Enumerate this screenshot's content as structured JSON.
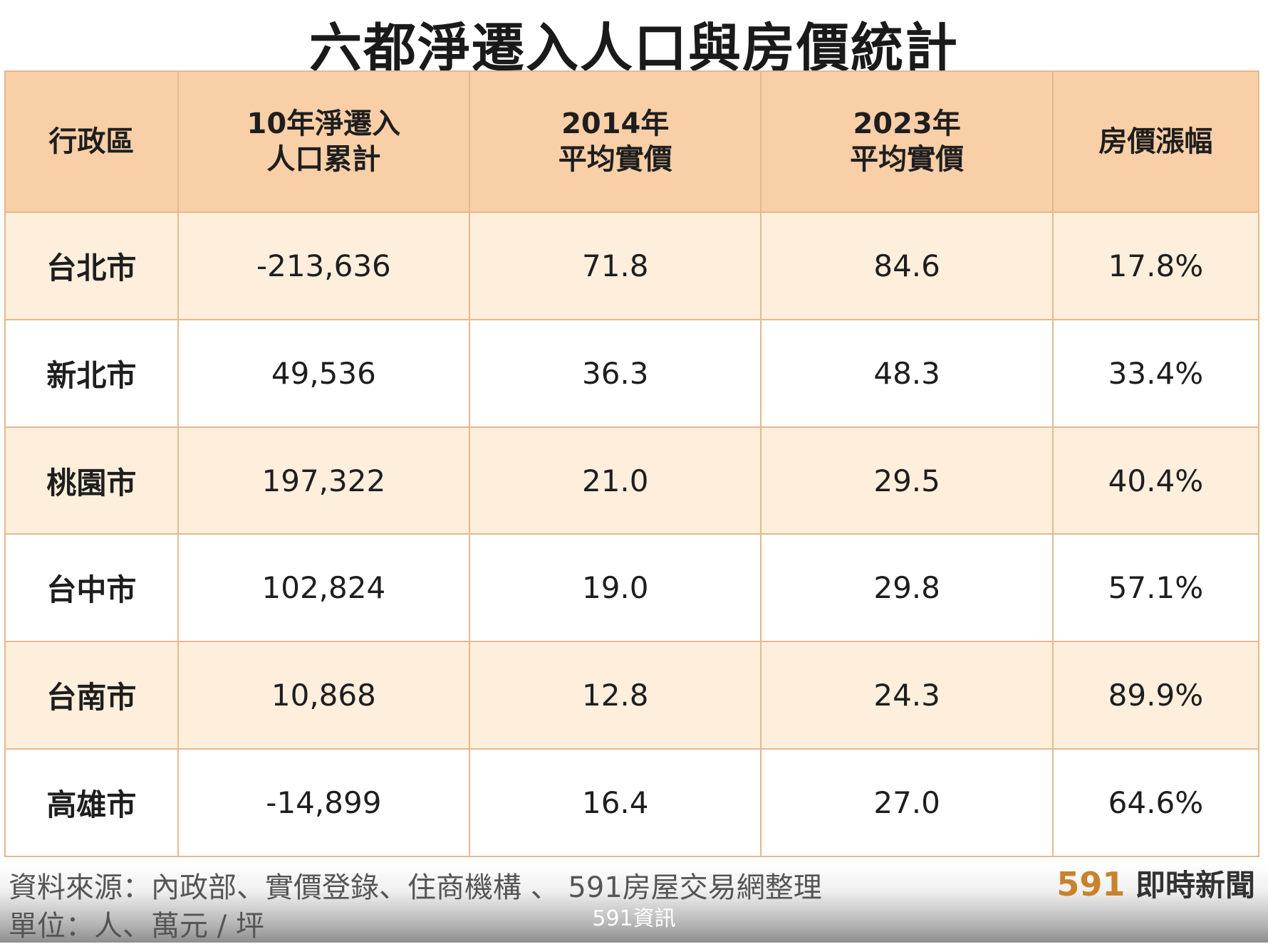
{
  "title": "六都淨遷入人口與房價統計",
  "chart_data": {
    "type": "table",
    "columns": [
      [
        "行政區"
      ],
      [
        "10年淨遷入",
        "人口累計"
      ],
      [
        "2014年",
        "平均實價"
      ],
      [
        "2023年",
        "平均實價"
      ],
      [
        "房價漲幅"
      ]
    ],
    "rows": [
      [
        "台北市",
        "-213,636",
        "71.8",
        "84.6",
        "17.8%"
      ],
      [
        "新北市",
        "49,536",
        "36.3",
        "48.3",
        "33.4%"
      ],
      [
        "桃園市",
        "197,322",
        "21.0",
        "29.5",
        "40.4%"
      ],
      [
        "台中市",
        "102,824",
        "19.0",
        "29.8",
        "57.1%"
      ],
      [
        "台南市",
        "10,868",
        "12.8",
        "24.3",
        "89.9%"
      ],
      [
        "高雄市",
        "-14,899",
        "16.4",
        "27.0",
        "64.6%"
      ]
    ]
  },
  "footer": {
    "source": "資料來源：內政部、實價登錄、住商機構 、 591房屋交易網整理",
    "unit": "單位：人、萬元 / 坪",
    "brand_num": "591",
    "brand_text": " 即時新聞",
    "caption": "591資訊"
  },
  "colors": {
    "header_bg": "#f9cfa7",
    "row_alt_bg": "#fdefdc",
    "border": "#e3b98f",
    "brand_accent": "#c8822a"
  }
}
